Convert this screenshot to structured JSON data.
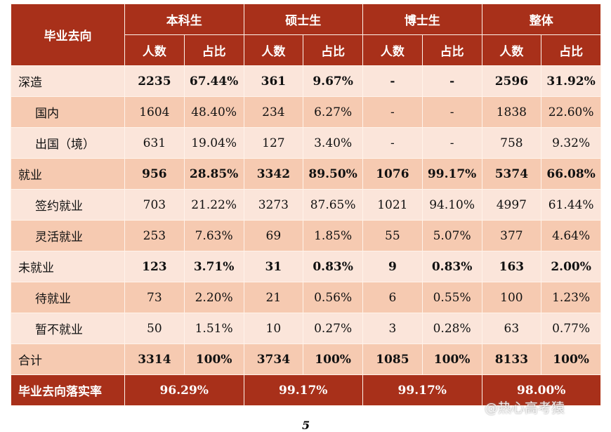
{
  "header": {
    "destination": "毕业去向",
    "groups": [
      "本科生",
      "硕士生",
      "博士生",
      "整体"
    ],
    "count": "人数",
    "ratio": "占比"
  },
  "rows": [
    {
      "name": "深造",
      "bold": true,
      "values": [
        "2235",
        "67.44%",
        "361",
        "9.67%",
        "-",
        "-",
        "2596",
        "31.92%"
      ]
    },
    {
      "name": "国内",
      "bold": false,
      "values": [
        "1604",
        "48.40%",
        "234",
        "6.27%",
        "-",
        "-",
        "1838",
        "22.60%"
      ]
    },
    {
      "name": "出国（境）",
      "bold": false,
      "values": [
        "631",
        "19.04%",
        "127",
        "3.40%",
        "-",
        "-",
        "758",
        "9.32%"
      ]
    },
    {
      "name": "就业",
      "bold": true,
      "values": [
        "956",
        "28.85%",
        "3342",
        "89.50%",
        "1076",
        "99.17%",
        "5374",
        "66.08%"
      ]
    },
    {
      "name": "签约就业",
      "bold": false,
      "values": [
        "703",
        "21.22%",
        "3273",
        "87.65%",
        "1021",
        "94.10%",
        "4997",
        "61.44%"
      ]
    },
    {
      "name": "灵活就业",
      "bold": false,
      "values": [
        "253",
        "7.63%",
        "69",
        "1.85%",
        "55",
        "5.07%",
        "377",
        "4.64%"
      ]
    },
    {
      "name": "未就业",
      "bold": true,
      "values": [
        "123",
        "3.71%",
        "31",
        "0.83%",
        "9",
        "0.83%",
        "163",
        "2.00%"
      ]
    },
    {
      "name": "待就业",
      "bold": false,
      "values": [
        "73",
        "2.20%",
        "21",
        "0.56%",
        "6",
        "0.55%",
        "100",
        "1.23%"
      ]
    },
    {
      "name": "暂不就业",
      "bold": false,
      "values": [
        "50",
        "1.51%",
        "10",
        "0.27%",
        "3",
        "0.28%",
        "63",
        "0.77%"
      ]
    },
    {
      "name": "合计",
      "bold": true,
      "values": [
        "3314",
        "100%",
        "3734",
        "100%",
        "1085",
        "100%",
        "8133",
        "100%"
      ]
    }
  ],
  "rate": {
    "name": "毕业去向落实率",
    "values": [
      "96.29%",
      "99.17%",
      "99.17%",
      "98.00%"
    ]
  },
  "page_number": "5",
  "watermark": "@热心高考猿"
}
